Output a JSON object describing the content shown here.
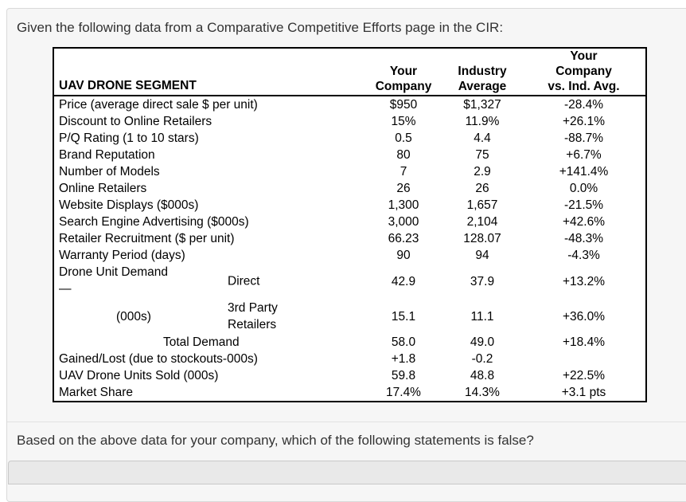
{
  "page": {
    "intro_text": "Given the following data from a Comparative Competitive Efforts page in the CIR:",
    "question_text": "Based on the above data for your company, which of the following statements is false?"
  },
  "table": {
    "segment_header": "UAV DRONE SEGMENT",
    "columns": [
      {
        "lines": [
          "Your",
          "Company"
        ]
      },
      {
        "lines": [
          "Industry",
          "Average"
        ]
      },
      {
        "lines": [
          "Your",
          "Company",
          "vs. Ind. Avg."
        ]
      }
    ],
    "rows": [
      {
        "label": "Price (average direct sale $ per unit)",
        "yc": "$950",
        "ia": "$1,327",
        "vs": "-28.4%"
      },
      {
        "label": "Discount to Online Retailers",
        "yc": "15%",
        "ia": "11.9%",
        "vs": "+26.1%"
      },
      {
        "label": "P/Q Rating (1 to 10 stars)",
        "yc": "0.5",
        "ia": "4.4",
        "vs": "-88.7%"
      },
      {
        "label": "Brand Reputation",
        "yc": "80",
        "ia": "75",
        "vs": "+6.7%"
      },
      {
        "label": "Number of Models",
        "yc": "7",
        "ia": "2.9",
        "vs": "+141.4%"
      },
      {
        "label": "Online Retailers",
        "yc": "26",
        "ia": "26",
        "vs": "0.0%"
      },
      {
        "label": "Website Displays ($000s)",
        "yc": "1,300",
        "ia": "1,657",
        "vs": "-21.5%"
      },
      {
        "label": "Search Engine Advertising ($000s)",
        "yc": "3,000",
        "ia": "2,104",
        "vs": "+42.6%"
      },
      {
        "label": "Retailer Recruitment ($ per unit)",
        "yc": "66.23",
        "ia": "128.07",
        "vs": "-48.3%"
      },
      {
        "label": "Warranty Period (days)",
        "yc": "90",
        "ia": "94",
        "vs": "-4.3%"
      },
      {
        "label": "Drone Unit Demand",
        "label2": "—",
        "sub": "Direct",
        "toplab": true,
        "yc": "42.9",
        "ia": "37.9",
        "vs": "+13.2%"
      },
      {
        "label": "(000s)",
        "indent": 1,
        "sub": "3rd Party Retailers",
        "yc": "15.1",
        "ia": "11.1",
        "vs": "+36.0%"
      },
      {
        "label": "Total Demand",
        "indent": 2,
        "yc": "58.0",
        "ia": "49.0",
        "vs": "+18.4%"
      },
      {
        "label": "Gained/Lost (due to stockouts-000s)",
        "yc": "+1.8",
        "ia": "-0.2",
        "vs": ""
      },
      {
        "label": "UAV Drone Units Sold (000s)",
        "yc": "59.8",
        "ia": "48.8",
        "vs": "+22.5%"
      },
      {
        "label": "Market Share",
        "yc": "17.4%",
        "ia": "14.3%",
        "vs": "+3.1 pts"
      }
    ]
  },
  "colors": {
    "panel_bg": "#f6f6f6",
    "panel_border": "#d9d9d9",
    "table_border": "#000000",
    "divider": "#e2e2e2",
    "option_bg": "#e9e9e9",
    "option_border": "#c9c9c9",
    "text": "#333333",
    "table_text": "#000000"
  }
}
